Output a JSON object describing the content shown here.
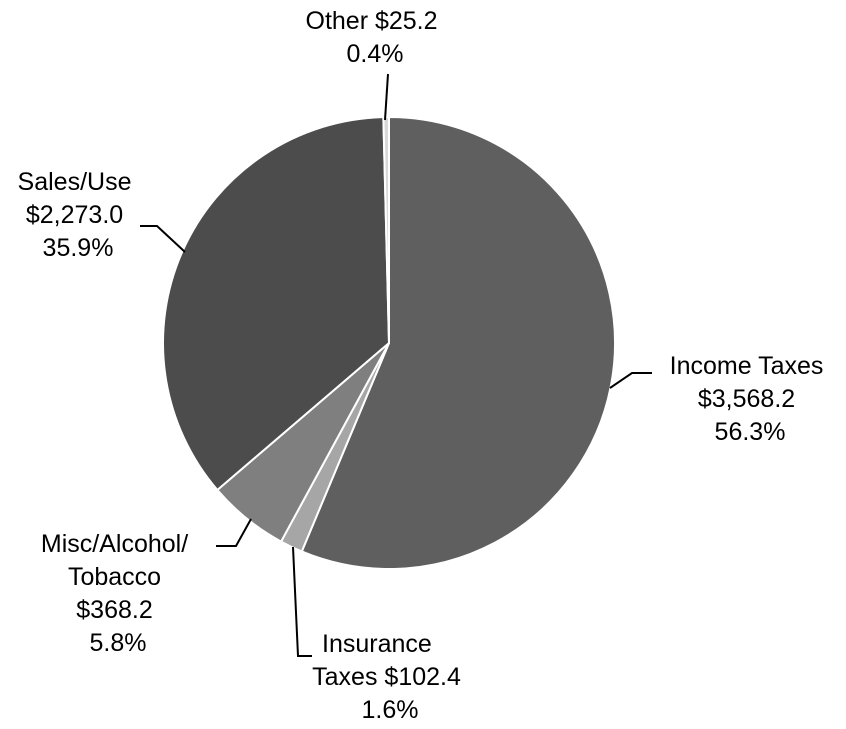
{
  "chart_data": {
    "type": "pie",
    "units": "$",
    "slices": [
      {
        "label_lines": [
          "Income Taxes",
          "$3,568.2",
          "56.3%"
        ],
        "name": "Income Taxes",
        "value": 3568.2,
        "percent": 56.3,
        "color": "#5f5f5f"
      },
      {
        "label_lines": [
          "Insurance",
          "Taxes  $102.4",
          "1.6%"
        ],
        "name": "Insurance Taxes",
        "value": 102.4,
        "percent": 1.6,
        "color": "#a6a6a6"
      },
      {
        "label_lines": [
          "Misc/Alcohol/",
          "Tobacco",
          "$368.2",
          "5.8%"
        ],
        "name": "Misc/Alcohol/Tobacco",
        "value": 368.2,
        "percent": 5.8,
        "color": "#7f7f7f"
      },
      {
        "label_lines": [
          "Sales/Use",
          "$2,273.0",
          "35.9%"
        ],
        "name": "Sales/Use",
        "value": 2273.0,
        "percent": 35.9,
        "color": "#4c4c4c"
      },
      {
        "label_lines": [
          "Other  $25.2",
          "0.4%"
        ],
        "name": "Other",
        "value": 25.2,
        "percent": 0.4,
        "color": "#d9d9d9"
      }
    ],
    "start_angle_deg": 0,
    "direction": "clockwise",
    "legend": "none",
    "slice_border_color": "#ffffff",
    "label_text_color": "#000000",
    "leader_line_color": "#000000"
  }
}
